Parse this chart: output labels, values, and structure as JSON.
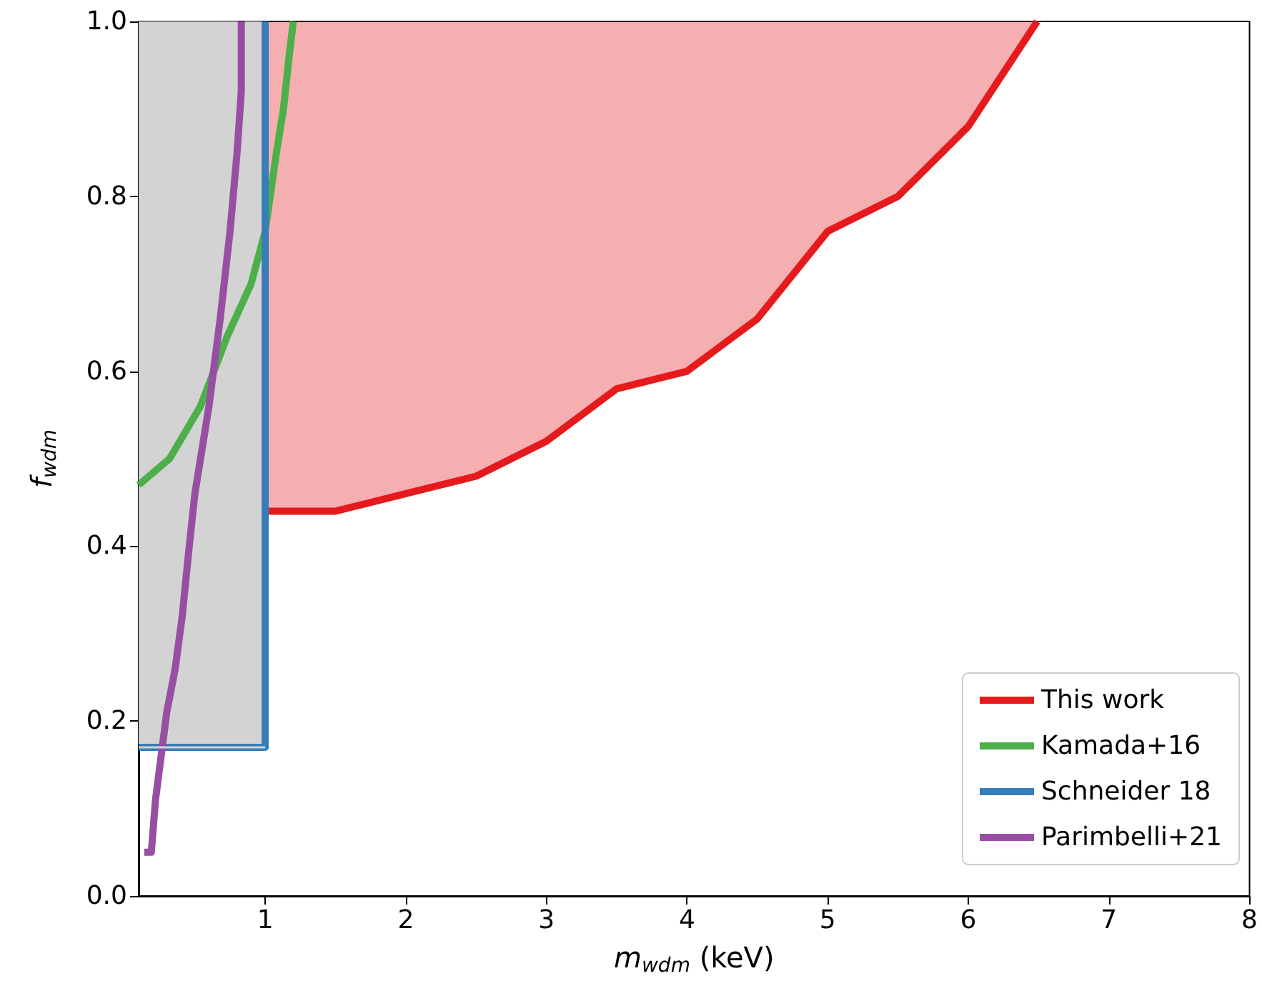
{
  "chart_data": {
    "type": "line",
    "xlabel": "m$_{wdm}$ (keV)",
    "ylabel": "f$_{wdm}$",
    "xlim": [
      0.1,
      8
    ],
    "xticks": [
      1,
      2,
      3,
      4,
      5,
      6,
      7,
      8
    ],
    "ylim": [
      0,
      1
    ],
    "yticks": [
      {
        "value": 0,
        "label": "0.0"
      },
      {
        "value": 0.2,
        "label": "0.2"
      },
      {
        "value": 0.4,
        "label": "0.4"
      },
      {
        "value": 0.6,
        "label": "0.6"
      },
      {
        "value": 0.8,
        "label": "0.8"
      },
      {
        "value": 1,
        "label": "1.0"
      }
    ],
    "grid": false,
    "legend": "bottom right",
    "marker": "none",
    "line_style": "solid",
    "series": [
      {
        "color": "#d3d3d3",
        "x": [
          0.1,
          1
        ],
        "values": [
          0.17,
          0.17
        ],
        "lower": [
          0.17,
          0.17
        ],
        "upper": [
          1,
          1
        ]
      },
      {
        "name": "This work",
        "color": "#e41a1c",
        "x": [
          1,
          1.5,
          2,
          2.5,
          3,
          3.5,
          4,
          4.5,
          5,
          5.5,
          6,
          6.49
        ],
        "values": [
          0.44,
          0.44,
          0.46,
          0.48,
          0.52,
          0.58,
          0.6,
          0.66,
          0.76,
          0.8,
          0.88,
          1.0
        ],
        "lower": [
          0.44,
          0.44,
          0.46,
          0.48,
          0.52,
          0.58,
          0.6,
          0.66,
          0.76,
          0.8,
          0.88,
          1.0
        ],
        "upper": [
          1,
          1,
          1,
          1,
          1,
          1,
          1,
          1,
          1,
          1,
          1,
          1
        ]
      },
      {
        "name": "Kamada+16",
        "color": "#4daf4a",
        "x": [
          0.1,
          0.32,
          0.54,
          0.73,
          0.9,
          1.0,
          1.08,
          1.13,
          1.17,
          1.2
        ],
        "values": [
          0.47,
          0.5,
          0.56,
          0.64,
          0.7,
          0.76,
          0.85,
          0.9,
          0.96,
          1.0
        ]
      },
      {
        "name": "Schneider 18",
        "color": "#377eb8",
        "x": [
          0.1,
          1,
          1
        ],
        "values": [
          0.17,
          0.17,
          1
        ]
      },
      {
        "name": "Parimbelli+21",
        "color": "#984ea3",
        "x": [
          0.14,
          0.19,
          0.22,
          0.3,
          0.36,
          0.41,
          0.46,
          0.5,
          0.6,
          0.68,
          0.75,
          0.8,
          0.83,
          0.83
        ],
        "values": [
          0.05,
          0.05,
          0.11,
          0.21,
          0.26,
          0.32,
          0.4,
          0.46,
          0.56,
          0.66,
          0.76,
          0.85,
          0.92,
          1.0
        ]
      }
    ]
  }
}
